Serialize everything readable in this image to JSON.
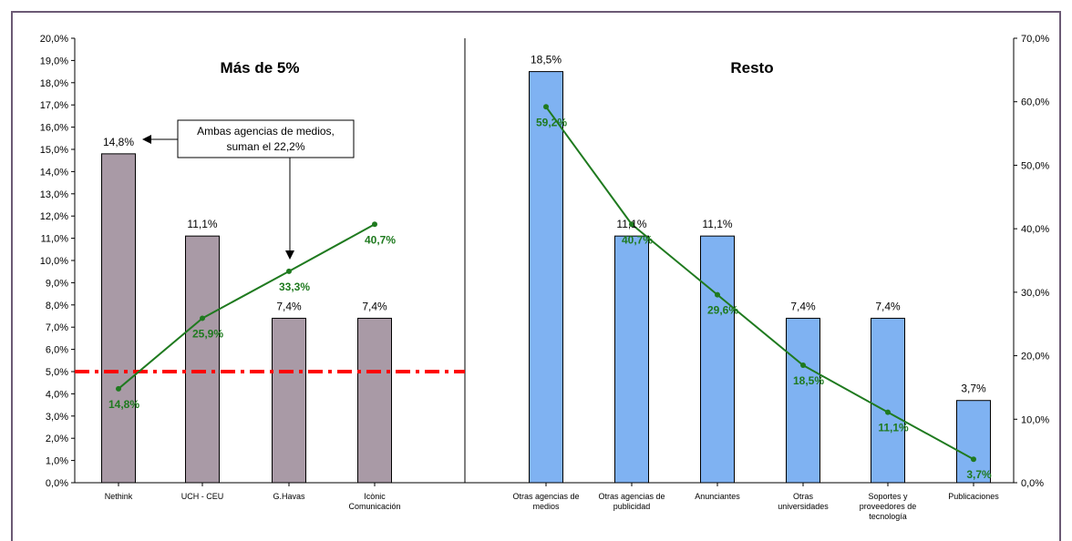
{
  "chart_data": {
    "type": "bar",
    "panels": [
      {
        "title": "Más de 5%",
        "group": "left"
      },
      {
        "title": "Resto",
        "group": "right"
      }
    ],
    "categories": [
      [
        "Nethink"
      ],
      [
        "UCH - CEU"
      ],
      [
        "G.Havas"
      ],
      [
        "Icònic",
        "Comunicación"
      ],
      [
        "Otras agencias de",
        "medios"
      ],
      [
        "Otras agencias de",
        "publicidad"
      ],
      [
        "Anunciantes"
      ],
      [
        "Otras",
        "universidades"
      ],
      [
        "Soportes y",
        "proveedores de",
        "tecnología"
      ],
      [
        "Publicaciones"
      ]
    ],
    "bar_groups": [
      "left",
      "left",
      "left",
      "left",
      "right",
      "right",
      "right",
      "right",
      "right",
      "right"
    ],
    "bar_values": [
      14.8,
      11.1,
      7.4,
      7.4,
      18.5,
      11.1,
      11.1,
      7.4,
      7.4,
      3.7
    ],
    "bar_labels": [
      "14,8%",
      "11,1%",
      "7,4%",
      "7,4%",
      "18,5%",
      "11,1%",
      "11,1%",
      "7,4%",
      "7,4%",
      "3,7%"
    ],
    "line_values": [
      14.8,
      25.9,
      33.3,
      40.7,
      59.2,
      40.7,
      29.6,
      18.5,
      11.1,
      3.7
    ],
    "line_labels": [
      "14,8%",
      "25,9%",
      "33,3%",
      "40,7%",
      "59,2%",
      "40,7%",
      "29,6%",
      "18,5%",
      "11,1%",
      "3,7%"
    ],
    "left_axis": {
      "min": 0,
      "max": 20,
      "step": 1,
      "tick_labels": [
        "0,0%",
        "1,0%",
        "2,0%",
        "3,0%",
        "4,0%",
        "5,0%",
        "6,0%",
        "7,0%",
        "8,0%",
        "9,0%",
        "10,0%",
        "11,0%",
        "12,0%",
        "13,0%",
        "14,0%",
        "15,0%",
        "16,0%",
        "17,0%",
        "18,0%",
        "19,0%",
        "20,0%"
      ]
    },
    "right_axis": {
      "min": 0,
      "max": 70,
      "step": 10,
      "tick_labels": [
        "0,0%",
        "10,0%",
        "20,0%",
        "30,0%",
        "40,0%",
        "50,0%",
        "60,0%",
        "70,0%"
      ]
    },
    "reference_line": {
      "value": 5.0,
      "style": "dash-dot",
      "color": "#ff0000"
    },
    "annotation": {
      "lines": [
        "Ambas agencias de medios,",
        "suman el 22,2%"
      ]
    },
    "colors": {
      "left_bars": "#a99aa6",
      "right_bars": "#7fb2f2",
      "line": "#1f7a1f",
      "line_label": "#1f7a1f",
      "reference": "#ff0000",
      "axis": "#000000",
      "frame": "#6b5a74"
    },
    "grid": false,
    "legend": "none"
  }
}
